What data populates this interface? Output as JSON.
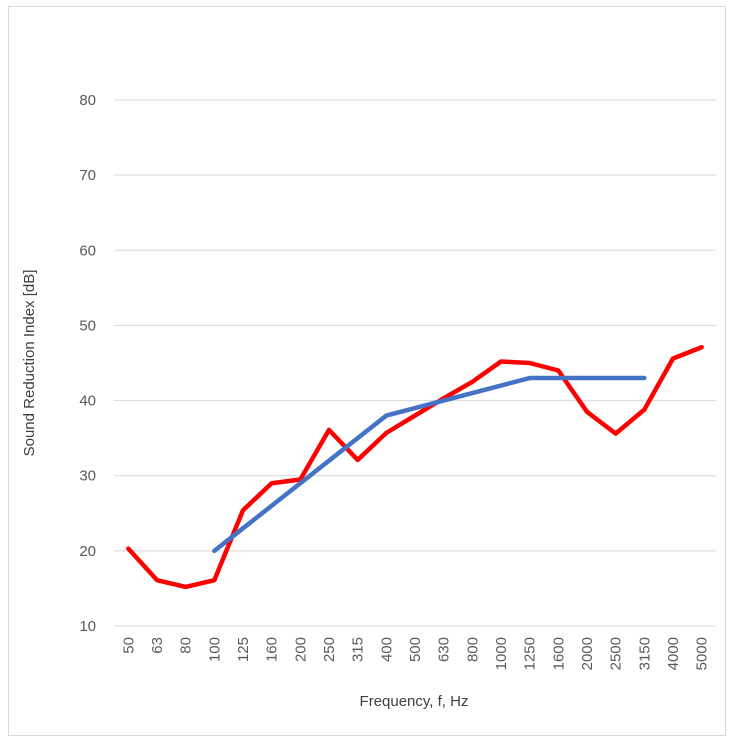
{
  "chart_data": {
    "type": "line",
    "title": "",
    "xlabel": "Frequency, f, Hz",
    "ylabel": "Sound Reduction Index [dB]",
    "categories": [
      "50",
      "63",
      "80",
      "100",
      "125",
      "160",
      "200",
      "250",
      "315",
      "400",
      "500",
      "630",
      "800",
      "1000",
      "1250",
      "1600",
      "2000",
      "2500",
      "3150",
      "4000",
      "5000"
    ],
    "ylim": [
      10,
      80
    ],
    "yticks": [
      10,
      20,
      30,
      40,
      50,
      60,
      70,
      80
    ],
    "grid": true,
    "series": [
      {
        "color": "#ff0000",
        "values": [
          20.3,
          16.1,
          15.2,
          16.1,
          25.4,
          29.0,
          29.5,
          36.1,
          32.1,
          35.7,
          38.0,
          40.3,
          42.5,
          45.2,
          45.0,
          44.0,
          38.5,
          35.6,
          38.8,
          45.6,
          47.1
        ]
      },
      {
        "color": "#4472c4",
        "values": [
          null,
          null,
          null,
          20,
          23,
          26,
          29,
          32,
          35,
          38,
          39,
          40,
          41,
          42,
          43,
          43,
          43,
          43,
          43,
          null,
          null
        ]
      }
    ]
  }
}
